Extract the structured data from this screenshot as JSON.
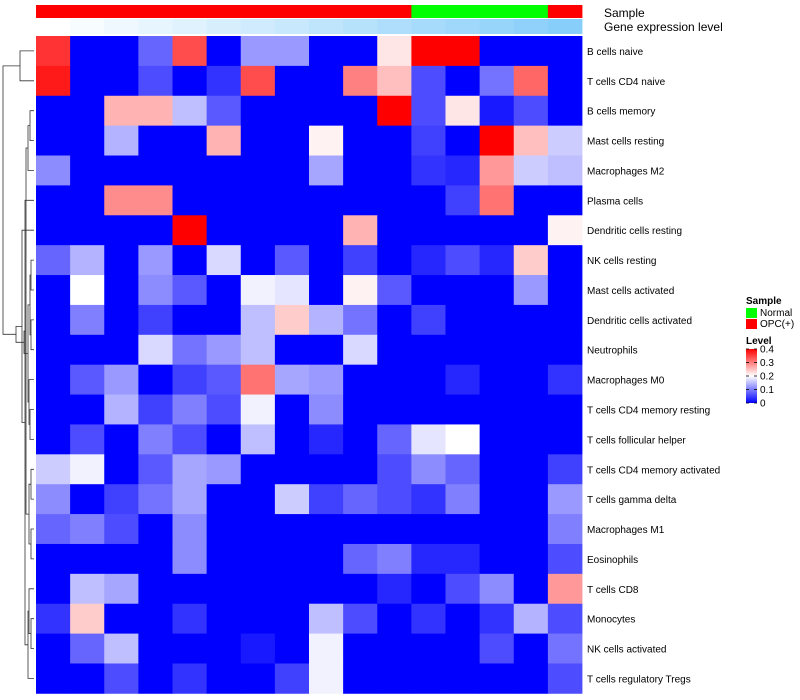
{
  "chart_data": {
    "type": "heatmap",
    "annotation_labels": {
      "sample": "Sample",
      "gene": "Gene expression level"
    },
    "legend_sample": {
      "title": "Sample",
      "items": [
        {
          "label": "Normal",
          "color": "#00ff00"
        },
        {
          "label": "OPC(+)",
          "color": "#ff0000"
        }
      ]
    },
    "legend_level": {
      "title": "Level",
      "ticks": [
        "0.4",
        "0.3",
        "0.2",
        "0.1",
        "0"
      ],
      "tick_values": [
        0.4,
        0.3,
        0.2,
        0.1,
        0.0
      ],
      "range": [
        0,
        0.4
      ],
      "colors": {
        "low": "#0000ff",
        "mid": "#ffffff",
        "high": "#ff0000"
      }
    },
    "sample_groups": [
      "OPC(+)",
      "OPC(+)",
      "OPC(+)",
      "OPC(+)",
      "OPC(+)",
      "OPC(+)",
      "OPC(+)",
      "OPC(+)",
      "OPC(+)",
      "OPC(+)",
      "OPC(+)",
      "Normal",
      "Normal",
      "Normal",
      "Normal",
      "OPC(+)"
    ],
    "gene_expression": [
      0.0,
      0.02,
      0.04,
      0.06,
      0.08,
      0.1,
      0.12,
      0.14,
      0.16,
      0.18,
      0.2,
      0.22,
      0.24,
      0.26,
      0.28,
      0.3
    ],
    "rows": [
      "B cells naive",
      "T cells CD4 naive",
      "B cells memory",
      "Mast cells resting",
      "Macrophages M2",
      "Plasma cells",
      "Dendritic cells resting",
      "NK cells resting",
      "Mast cells activated",
      "Dendritic cells activated",
      "Neutrophils",
      "Macrophages M0",
      "T cells CD4 memory resting",
      "T cells follicular helper",
      "T cells CD4 memory activated",
      "T cells gamma delta",
      "Macrophages M1",
      "Eosinophils",
      "T cells CD8",
      "Monocytes",
      "NK cells activated",
      "T cells regulatory  Tregs"
    ],
    "values": [
      [
        0.36,
        0,
        0,
        0.08,
        0.34,
        0,
        0.12,
        0.12,
        0,
        0,
        0.22,
        0.4,
        0.4,
        0,
        0,
        0
      ],
      [
        0.38,
        0,
        0,
        0.06,
        0,
        0.04,
        0.34,
        0,
        0,
        0.3,
        0.25,
        0.06,
        0,
        0.09,
        0.32,
        0
      ],
      [
        0,
        0,
        0.26,
        0.26,
        0.15,
        0.07,
        0,
        0,
        0,
        0,
        0.4,
        0.06,
        0.22,
        0.02,
        0.06,
        0
      ],
      [
        0,
        0,
        0.14,
        0,
        0,
        0.26,
        0,
        0,
        0.21,
        0,
        0,
        0.05,
        0,
        0.4,
        0.25,
        0.16
      ],
      [
        0.11,
        0,
        0,
        0,
        0,
        0,
        0,
        0,
        0.13,
        0,
        0,
        0.04,
        0.03,
        0.28,
        0.16,
        0.15
      ],
      [
        0,
        0,
        0.29,
        0.29,
        0,
        0,
        0,
        0,
        0,
        0,
        0,
        0,
        0.05,
        0.31,
        0,
        0
      ],
      [
        0,
        0,
        0,
        0,
        0.4,
        0,
        0,
        0,
        0,
        0.26,
        0,
        0,
        0,
        0,
        0,
        0.21
      ],
      [
        0.08,
        0.14,
        0,
        0.12,
        0,
        0.17,
        0,
        0.07,
        0,
        0.05,
        0,
        0.03,
        0.06,
        0.03,
        0.24,
        0
      ],
      [
        0,
        0.2,
        0,
        0.11,
        0.07,
        0,
        0.19,
        0.18,
        0,
        0.21,
        0.07,
        0,
        0,
        0,
        0.12,
        0
      ],
      [
        0,
        0.1,
        0,
        0.05,
        0,
        0,
        0.15,
        0.24,
        0.14,
        0.09,
        0,
        0.05,
        0,
        0,
        0,
        0
      ],
      [
        0,
        0,
        0,
        0.17,
        0.09,
        0.12,
        0.15,
        0,
        0,
        0.17,
        0,
        0,
        0,
        0,
        0,
        0
      ],
      [
        0,
        0.07,
        0.12,
        0,
        0.05,
        0.07,
        0.31,
        0.13,
        0.12,
        0,
        0,
        0,
        0.03,
        0,
        0,
        0.04
      ],
      [
        0,
        0,
        0.14,
        0.05,
        0.1,
        0.06,
        0.19,
        0,
        0.11,
        0,
        0,
        0,
        0,
        0,
        0,
        0
      ],
      [
        0,
        0.06,
        0,
        0.1,
        0.06,
        0,
        0.15,
        0,
        0.03,
        0,
        0.08,
        0.18,
        0.2,
        0,
        0,
        0
      ],
      [
        0.16,
        0.19,
        0,
        0.07,
        0.13,
        0.12,
        0,
        0,
        0,
        0,
        0.06,
        0.11,
        0.08,
        0,
        0,
        0.05
      ],
      [
        0.11,
        0,
        0.05,
        0.09,
        0.13,
        0,
        0,
        0.16,
        0.05,
        0.08,
        0.06,
        0.04,
        0.1,
        0,
        0,
        0.12
      ],
      [
        0.08,
        0.1,
        0.06,
        0,
        0.11,
        0,
        0,
        0,
        0,
        0,
        0,
        0,
        0,
        0,
        0,
        0.1
      ],
      [
        0,
        0,
        0,
        0,
        0.11,
        0,
        0,
        0,
        0,
        0.08,
        0.1,
        0.03,
        0.03,
        0,
        0,
        0.06
      ],
      [
        0,
        0.15,
        0.13,
        0,
        0,
        0,
        0,
        0,
        0,
        0,
        0.03,
        0,
        0.06,
        0.11,
        0,
        0.28
      ],
      [
        0.04,
        0.24,
        0,
        0,
        0.04,
        0,
        0,
        0,
        0.15,
        0.06,
        0,
        0.04,
        0,
        0.04,
        0.14,
        0.06
      ],
      [
        0,
        0.08,
        0.15,
        0,
        0,
        0,
        0.02,
        0,
        0.19,
        0,
        0,
        0,
        0,
        0.06,
        0,
        0.09
      ],
      [
        0,
        0,
        0.06,
        0,
        0.04,
        0,
        0,
        0.05,
        0.19,
        0,
        0,
        0,
        0,
        0,
        0,
        0.06
      ]
    ]
  }
}
